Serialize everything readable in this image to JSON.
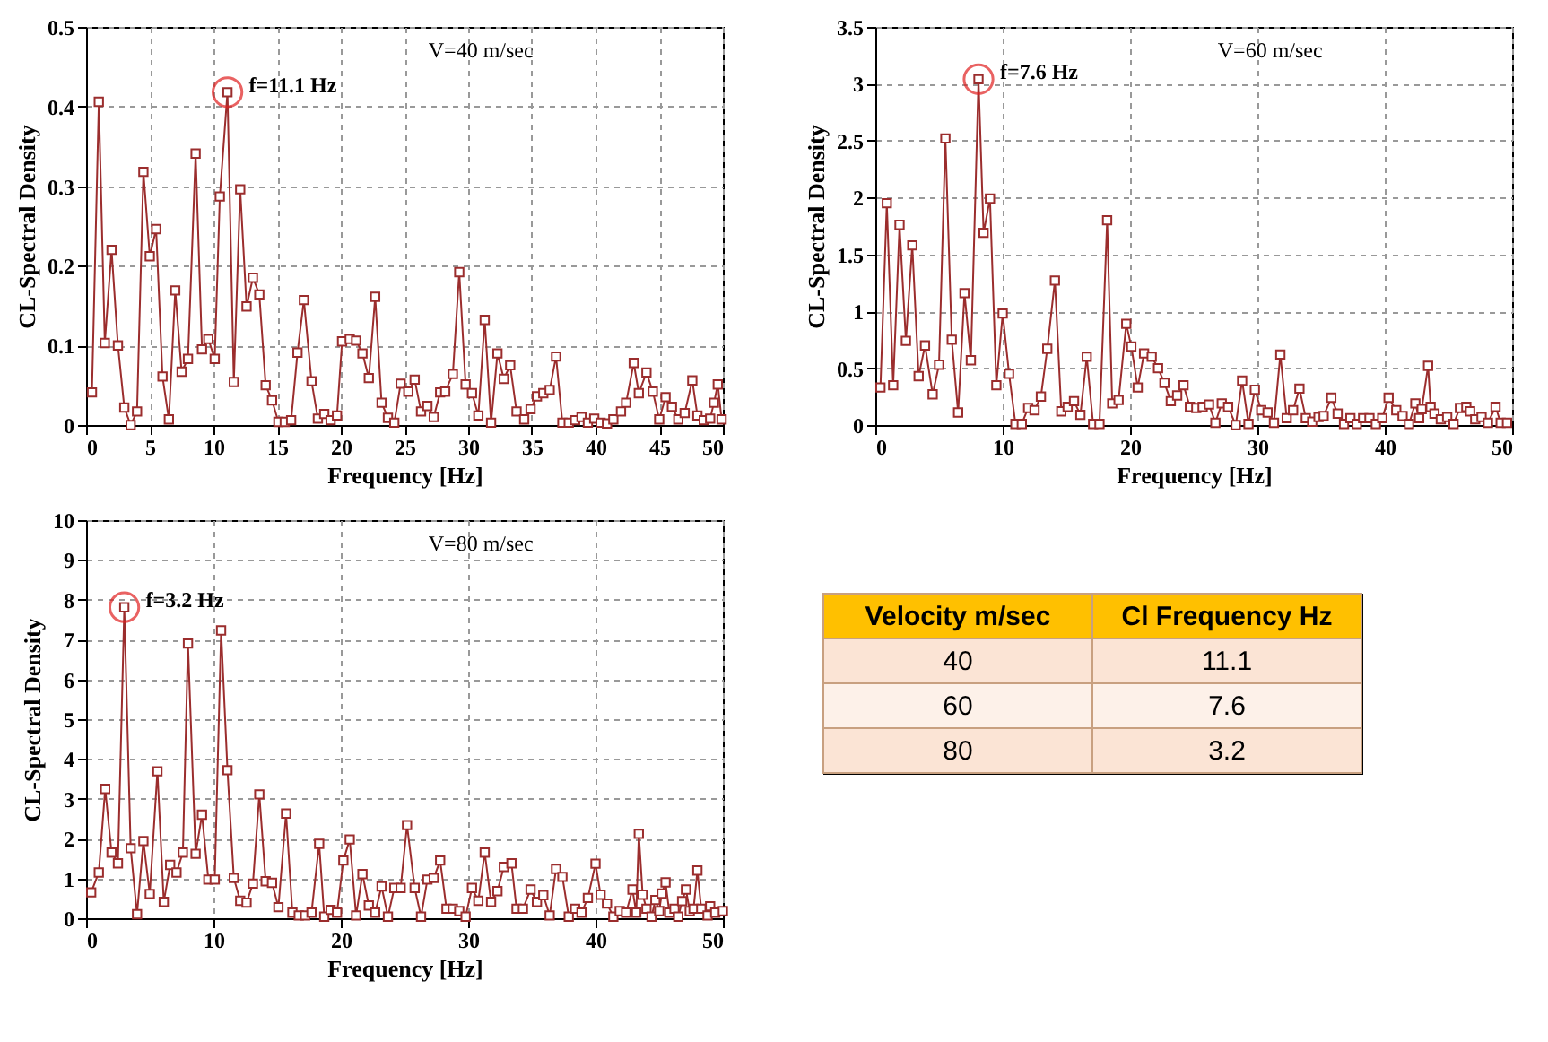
{
  "chart_data": [
    {
      "type": "line",
      "xlabel": "Frequency  [Hz]",
      "ylabel": "CL-Spectral Density",
      "xlim": [
        0,
        50
      ],
      "xticks": [
        0,
        5,
        10,
        15,
        20,
        25,
        30,
        35,
        40,
        45,
        50
      ],
      "ylim": [
        0,
        0.5
      ],
      "yticks": [
        0,
        0.1,
        0.2,
        0.3,
        0.4,
        0.5
      ],
      "grid": true,
      "marker": "square",
      "annotations": [
        "V=40 m/sec",
        {
          "text": "f=11.1 Hz",
          "x": 11.1,
          "y": 0.418
        }
      ],
      "series": [
        {
          "color": "#9b2d2d",
          "x": [
            0.46,
            1.0,
            1.47,
            2.0,
            2.5,
            3.0,
            3.5,
            4.0,
            4.5,
            5.0,
            5.5,
            6.0,
            6.5,
            7.0,
            7.5,
            8.0,
            8.6,
            9.1,
            9.6,
            10.1,
            10.5,
            11.1,
            11.6,
            12.1,
            12.6,
            13.1,
            13.6,
            14.1,
            14.6,
            15.1,
            15.6,
            16.1,
            16.6,
            17.1,
            17.7,
            18.2,
            18.7,
            19.2,
            19.7,
            20.1,
            20.7,
            21.2,
            21.7,
            22.2,
            22.7,
            23.2,
            23.7,
            24.2,
            24.7,
            25.3,
            25.8,
            26.3,
            26.8,
            27.3,
            27.8,
            28.2,
            28.8,
            29.3,
            29.8,
            30.3,
            30.8,
            31.3,
            31.8,
            32.3,
            32.8,
            33.3,
            33.8,
            34.4,
            34.9,
            35.4,
            35.9,
            36.4,
            36.9,
            37.4,
            37.9,
            38.4,
            38.9,
            39.4,
            39.9,
            40.4,
            40.9,
            41.4,
            42.0,
            42.4,
            43.0,
            43.4,
            44.0,
            44.5,
            45.0,
            45.5,
            46.0,
            46.5,
            47.0,
            47.6,
            48.0,
            48.5,
            49.0,
            49.3,
            49.6,
            49.9
          ],
          "values": [
            0.041,
            0.406,
            0.103,
            0.22,
            0.1,
            0.022,
            0.0,
            0.017,
            0.318,
            0.212,
            0.246,
            0.061,
            0.007,
            0.169,
            0.067,
            0.083,
            0.341,
            0.095,
            0.108,
            0.083,
            0.287,
            0.418,
            0.054,
            0.296,
            0.149,
            0.185,
            0.164,
            0.05,
            0.031,
            0.004,
            0.004,
            0.006,
            0.091,
            0.157,
            0.055,
            0.008,
            0.014,
            0.006,
            0.012,
            0.105,
            0.108,
            0.106,
            0.09,
            0.059,
            0.161,
            0.028,
            0.009,
            0.003,
            0.052,
            0.042,
            0.057,
            0.017,
            0.024,
            0.01,
            0.041,
            0.042,
            0.064,
            0.192,
            0.051,
            0.04,
            0.012,
            0.132,
            0.003,
            0.09,
            0.058,
            0.075,
            0.017,
            0.007,
            0.02,
            0.036,
            0.04,
            0.044,
            0.086,
            0.003,
            0.003,
            0.006,
            0.01,
            0.003,
            0.008,
            0.003,
            0.002,
            0.007,
            0.017,
            0.028,
            0.078,
            0.04,
            0.066,
            0.042,
            0.007,
            0.035,
            0.023,
            0.007,
            0.015,
            0.056,
            0.012,
            0.006,
            0.008,
            0.028,
            0.051,
            0.007
          ]
        }
      ]
    },
    {
      "type": "line",
      "xlabel": "Frequency  [Hz]",
      "ylabel": "CL-Spectral Density",
      "xlim": [
        0,
        50
      ],
      "xticks": [
        0,
        10,
        20,
        30,
        40,
        50
      ],
      "ylim": [
        0,
        3.5
      ],
      "yticks": [
        0,
        0.5,
        1,
        1.5,
        2,
        2.5,
        3,
        3.5
      ],
      "grid": true,
      "marker": "square",
      "annotations": [
        "V=60 m/sec",
        {
          "text": "f=7.6 Hz",
          "x": 8.1,
          "y": 3.04
        }
      ],
      "series": [
        {
          "color": "#9b2d2d",
          "x": [
            0.4,
            0.9,
            1.4,
            1.9,
            2.4,
            2.9,
            3.4,
            3.9,
            4.5,
            5.0,
            5.5,
            6.0,
            6.5,
            7.0,
            7.5,
            8.1,
            8.5,
            9.0,
            9.5,
            10.0,
            10.5,
            11.0,
            11.5,
            12.0,
            12.5,
            13.0,
            13.5,
            14.1,
            14.6,
            15.1,
            15.6,
            16.1,
            16.6,
            17.1,
            17.6,
            18.2,
            18.6,
            19.1,
            19.7,
            20.1,
            20.6,
            21.1,
            21.7,
            22.2,
            22.7,
            23.2,
            23.7,
            24.2,
            24.7,
            25.2,
            25.7,
            26.2,
            26.7,
            27.2,
            27.7,
            28.3,
            28.8,
            29.3,
            29.8,
            30.3,
            30.8,
            31.3,
            31.8,
            32.3,
            32.8,
            33.3,
            33.8,
            34.3,
            34.8,
            35.2,
            35.8,
            36.3,
            36.8,
            37.3,
            37.8,
            38.3,
            38.8,
            39.3,
            39.8,
            40.3,
            40.9,
            41.4,
            41.9,
            42.4,
            42.7,
            42.9,
            43.4,
            43.6,
            43.9,
            44.4,
            44.9,
            45.4,
            45.9,
            46.4,
            46.7,
            47.1,
            47.6,
            48.1,
            48.7,
            49.1,
            49.6
          ],
          "values": [
            0.33,
            1.95,
            0.35,
            1.76,
            0.74,
            1.58,
            0.43,
            0.7,
            0.27,
            0.53,
            2.52,
            0.75,
            0.11,
            1.16,
            0.57,
            3.04,
            1.69,
            1.99,
            0.35,
            0.98,
            0.45,
            0.01,
            0.01,
            0.15,
            0.13,
            0.25,
            0.67,
            1.27,
            0.12,
            0.16,
            0.21,
            0.09,
            0.6,
            0.01,
            0.01,
            1.8,
            0.19,
            0.22,
            0.89,
            0.69,
            0.33,
            0.63,
            0.6,
            0.5,
            0.37,
            0.21,
            0.26,
            0.35,
            0.16,
            0.15,
            0.16,
            0.18,
            0.02,
            0.19,
            0.16,
            0.0,
            0.39,
            0.01,
            0.31,
            0.13,
            0.11,
            0.02,
            0.62,
            0.06,
            0.13,
            0.32,
            0.06,
            0.03,
            0.07,
            0.08,
            0.24,
            0.1,
            0.01,
            0.06,
            0.01,
            0.06,
            0.06,
            0.01,
            0.06,
            0.24,
            0.13,
            0.08,
            0.01,
            0.19,
            0.06,
            0.14,
            0.52,
            0.16,
            0.1,
            0.05,
            0.07,
            0.01,
            0.15,
            0.16,
            0.12,
            0.05,
            0.07,
            0.02,
            0.16,
            0.02,
            0.02
          ]
        }
      ]
    },
    {
      "type": "line",
      "xlabel": "Frequency  [Hz]",
      "ylabel": "CL-Spectral Density",
      "xlim": [
        0,
        50
      ],
      "xticks": [
        0,
        10,
        20,
        30,
        40,
        50
      ],
      "ylim": [
        0,
        10
      ],
      "yticks": [
        0,
        1,
        2,
        3,
        4,
        5,
        6,
        7,
        8,
        9,
        10
      ],
      "grid": true,
      "marker": "square",
      "annotations": [
        "V=80 m/sec",
        {
          "text": "f=3.2 Hz",
          "x": 3.0,
          "y": 7.81
        }
      ],
      "series": [
        {
          "color": "#9b2d2d",
          "x": [
            0.4,
            1.0,
            1.5,
            2.0,
            2.5,
            3.0,
            3.5,
            4.0,
            4.5,
            5.0,
            5.6,
            6.1,
            6.6,
            7.1,
            7.6,
            8.0,
            8.6,
            9.1,
            9.6,
            10.1,
            10.6,
            11.1,
            11.6,
            12.1,
            12.6,
            13.1,
            13.6,
            14.1,
            14.6,
            15.1,
            15.7,
            16.2,
            16.7,
            17.2,
            17.7,
            18.3,
            18.7,
            19.2,
            19.7,
            20.2,
            20.7,
            21.2,
            21.7,
            22.2,
            22.7,
            23.2,
            23.7,
            24.2,
            24.7,
            25.2,
            25.8,
            26.3,
            26.8,
            27.3,
            27.8,
            28.3,
            28.8,
            29.3,
            29.8,
            30.3,
            30.8,
            31.3,
            31.8,
            32.3,
            32.8,
            33.4,
            33.8,
            34.3,
            34.9,
            35.4,
            35.9,
            36.4,
            36.9,
            37.4,
            37.9,
            38.4,
            38.9,
            39.4,
            40.0,
            40.4,
            40.9,
            41.4,
            41.9,
            42.4,
            42.9,
            43.2,
            43.4,
            43.7,
            44.0,
            44.4,
            44.7,
            45.0,
            45.2,
            45.5,
            45.8,
            46.2,
            46.5,
            46.8,
            47.1,
            47.4,
            47.7,
            48.0,
            48.3,
            48.8,
            49.0,
            49.4,
            50.0
          ],
          "values": [
            0.65,
            1.15,
            3.25,
            1.65,
            1.38,
            7.81,
            1.76,
            0.1,
            1.94,
            0.61,
            3.69,
            0.41,
            1.34,
            1.15,
            1.65,
            6.9,
            1.62,
            2.6,
            0.97,
            0.97,
            7.23,
            3.72,
            1.01,
            0.44,
            0.39,
            0.87,
            3.11,
            0.93,
            0.89,
            0.28,
            2.63,
            0.14,
            0.07,
            0.07,
            0.14,
            1.87,
            0.04,
            0.21,
            0.14,
            1.45,
            1.98,
            0.07,
            1.11,
            0.32,
            0.14,
            0.8,
            0.04,
            0.76,
            0.76,
            2.34,
            0.76,
            0.04,
            0.97,
            1.01,
            1.45,
            0.24,
            0.24,
            0.18,
            0.04,
            0.76,
            0.44,
            1.65,
            0.41,
            0.68,
            1.29,
            1.38,
            0.24,
            0.24,
            0.72,
            0.41,
            0.58,
            0.07,
            1.24,
            1.04,
            0.04,
            0.24,
            0.14,
            0.51,
            1.37,
            0.59,
            0.37,
            0.04,
            0.18,
            0.14,
            0.72,
            0.14,
            2.12,
            0.59,
            0.24,
            0.04,
            0.46,
            0.18,
            0.62,
            0.9,
            0.14,
            0.24,
            0.04,
            0.43,
            0.72,
            0.18,
            0.24,
            1.2,
            0.24,
            0.07,
            0.3,
            0.14,
            0.18
          ]
        }
      ]
    },
    {
      "type": "other",
      "xlabel": "Velocity m/sec",
      "ylabel": "Cl Frequency Hz",
      "categories": [
        "40",
        "60",
        "80"
      ],
      "values": [
        11.1,
        7.6,
        3.2
      ],
      "data_labels": true,
      "colors": [
        "#fbe4d5",
        "#fdf1e9",
        "#fbe4d5"
      ]
    }
  ]
}
